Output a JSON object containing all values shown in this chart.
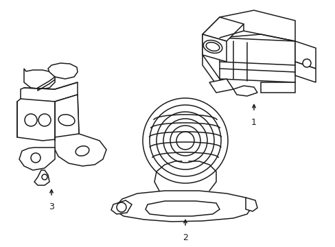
{
  "background_color": "#ffffff",
  "line_color": "#1a1a1a",
  "line_width": 1.1,
  "figure_width": 4.89,
  "figure_height": 3.6,
  "dpi": 100
}
